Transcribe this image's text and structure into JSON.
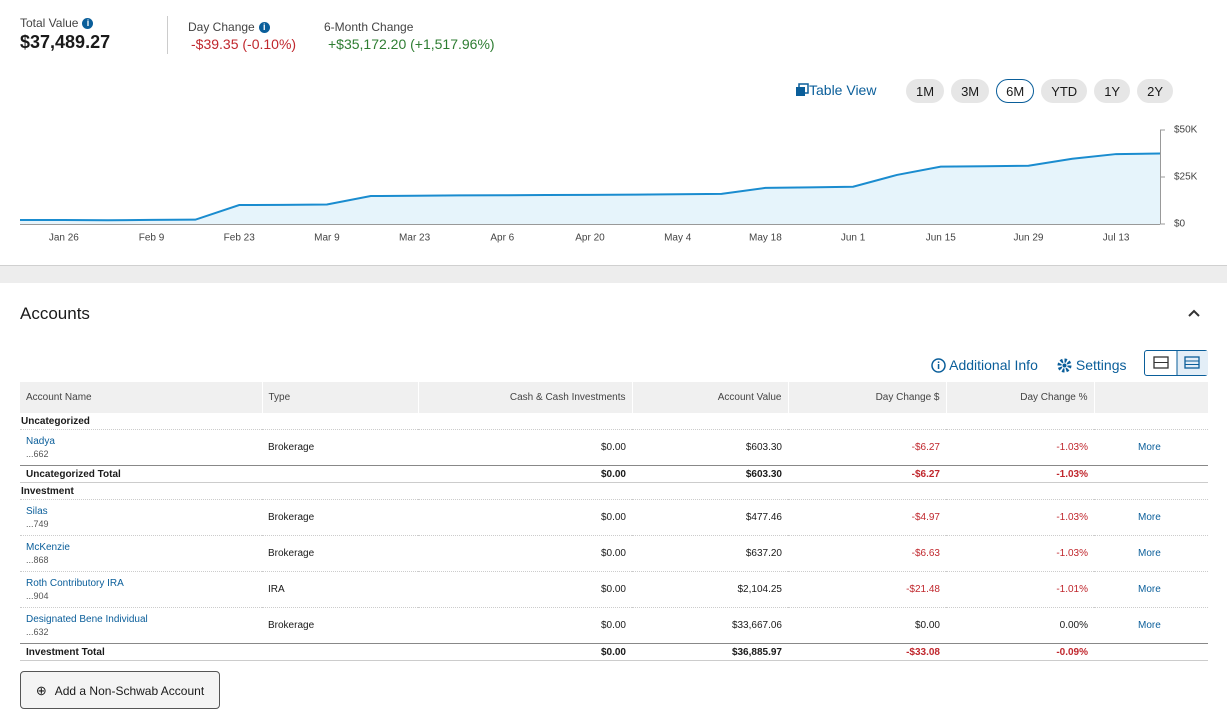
{
  "summary": {
    "total_value_label": "Total Value",
    "total_value": "$37,489.27",
    "day_change_label": "Day Change",
    "day_change": "-$39.35 (-0.10%)",
    "six_month_label": "6-Month Change",
    "six_month_change": "+$35,172.20 (+1,517.96%)"
  },
  "controls": {
    "table_view": "Table View",
    "ranges": [
      "1M",
      "3M",
      "6M",
      "YTD",
      "1Y",
      "2Y"
    ],
    "active_range_index": 2
  },
  "chart_data": {
    "type": "area",
    "color": "#1a8ccf",
    "fill": "#e6f4fb",
    "categories": [
      null,
      "Jan 26",
      null,
      "Feb 9",
      null,
      "Feb 23",
      null,
      "Mar 9",
      null,
      "Mar 23",
      null,
      "Apr 6",
      null,
      "Apr 20",
      null,
      "May 4",
      null,
      "May 18",
      null,
      "Jun 1",
      null,
      "Jun 15",
      null,
      "Jun 29",
      null,
      "Jul 13",
      null
    ],
    "values": [
      2100,
      2100,
      2000,
      2200,
      2300,
      10100,
      10200,
      10400,
      14900,
      15000,
      15200,
      15300,
      15400,
      15500,
      15600,
      15800,
      16000,
      19200,
      19500,
      19800,
      26100,
      30500,
      30700,
      31000,
      34700,
      37200,
      37500
    ],
    "ylim": [
      0,
      50000
    ],
    "yticks": [
      {
        "value": 0,
        "label": "$0"
      },
      {
        "value": 25000,
        "label": "$25K"
      },
      {
        "value": 50000,
        "label": "$50K"
      }
    ]
  },
  "accounts": {
    "title": "Accounts",
    "additional_info": "Additional Info",
    "settings": "Settings",
    "columns": [
      "Account Name",
      "Type",
      "Cash & Cash Investments",
      "Account Value",
      "Day Change $",
      "Day Change %"
    ],
    "groups": [
      {
        "name": "Uncategorized",
        "rows": [
          {
            "name": "Nadya",
            "number": "...662",
            "type": "Brokerage",
            "cash": "$0.00",
            "value": "$603.30",
            "day_change": "-$6.27",
            "day_change_pct": "-1.03%",
            "more": "More"
          }
        ],
        "total": {
          "label": "Uncategorized Total",
          "cash": "$0.00",
          "value": "$603.30",
          "day_change": "-$6.27",
          "day_change_pct": "-1.03%"
        }
      },
      {
        "name": "Investment",
        "rows": [
          {
            "name": "Silas",
            "number": "...749",
            "type": "Brokerage",
            "cash": "$0.00",
            "value": "$477.46",
            "day_change": "-$4.97",
            "day_change_pct": "-1.03%",
            "more": "More"
          },
          {
            "name": "McKenzie",
            "number": "...868",
            "type": "Brokerage",
            "cash": "$0.00",
            "value": "$637.20",
            "day_change": "-$6.63",
            "day_change_pct": "-1.03%",
            "more": "More"
          },
          {
            "name": "Roth Contributory IRA",
            "number": "...904",
            "type": "IRA",
            "cash": "$0.00",
            "value": "$2,104.25",
            "day_change": "-$21.48",
            "day_change_pct": "-1.01%",
            "more": "More"
          },
          {
            "name": "Designated Bene Individual",
            "number": "...632",
            "type": "Brokerage",
            "cash": "$0.00",
            "value": "$33,667.06",
            "day_change": "$0.00",
            "day_change_pct": "0.00%",
            "more": "More"
          }
        ],
        "total": {
          "label": "Investment Total",
          "cash": "$0.00",
          "value": "$36,885.97",
          "day_change": "-$33.08",
          "day_change_pct": "-0.09%"
        }
      }
    ],
    "add_button": "Add a Non-Schwab Account"
  }
}
